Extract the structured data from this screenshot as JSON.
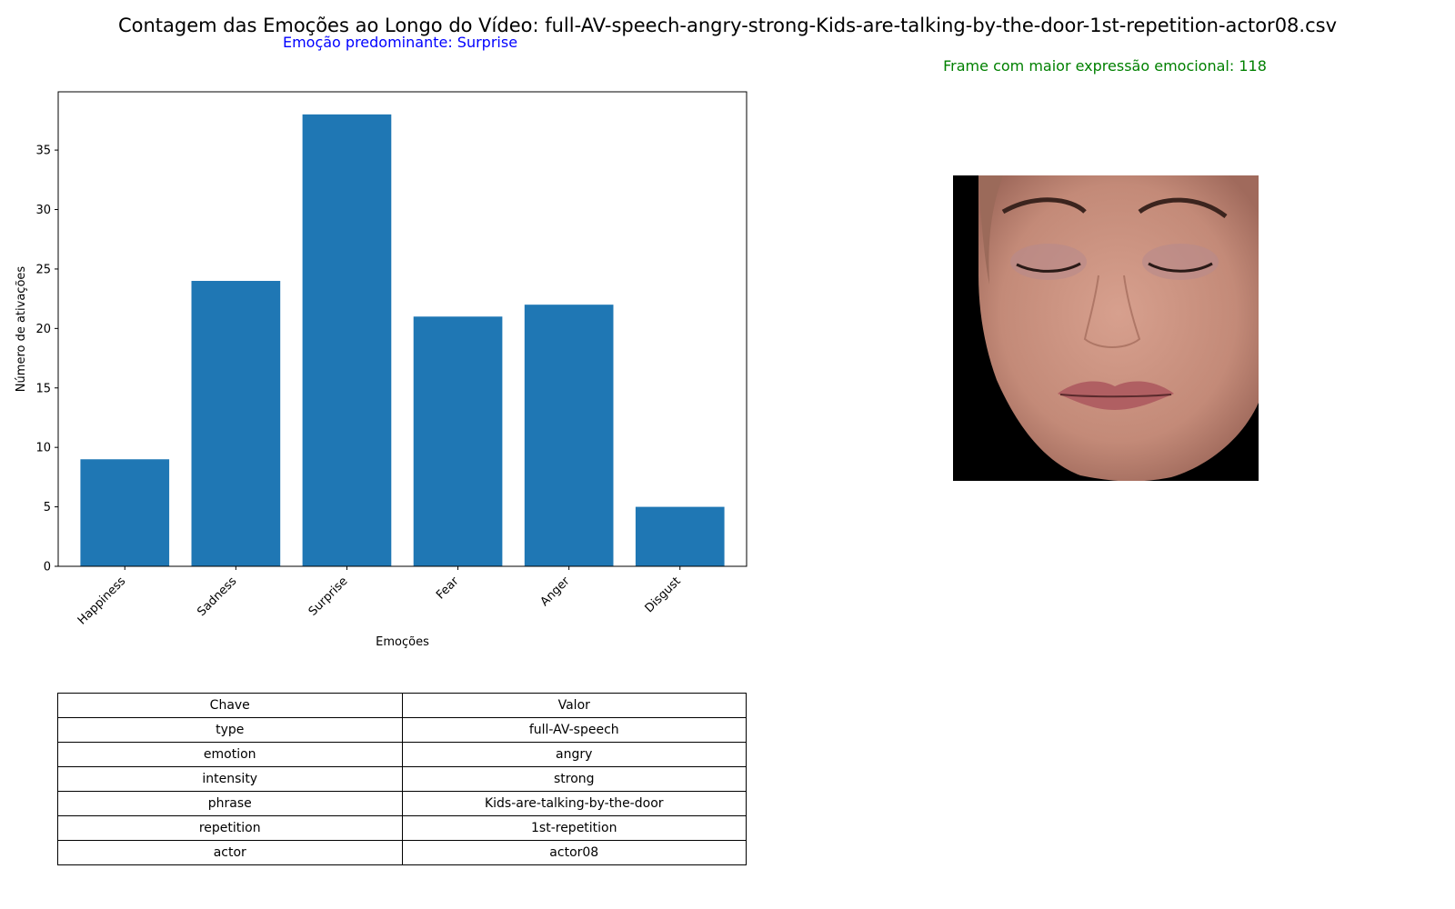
{
  "title": "Contagem das Emoções ao Longo do Vídeo: full-AV-speech-angry-strong-Kids-are-talking-by-the-door-1st-repetition-actor08.csv",
  "predominant_label": "Emoção predominante: Surprise",
  "frame_label": "Frame com maior expressão emocional: 118",
  "colors": {
    "bar": "#1f77b4",
    "predominant": "#0000ff",
    "frame": "#008000"
  },
  "chart_data": {
    "type": "bar",
    "categories": [
      "Happiness",
      "Sadness",
      "Surprise",
      "Fear",
      "Anger",
      "Disgust"
    ],
    "values": [
      9,
      24,
      38,
      21,
      22,
      5
    ],
    "xlabel": "Emoções",
    "ylabel": "Número de ativações",
    "ylim": [
      0,
      39.9
    ],
    "yticks": [
      0,
      5,
      10,
      15,
      20,
      25,
      30,
      35
    ],
    "grid": false
  },
  "table": {
    "headers": [
      "Chave",
      "Valor"
    ],
    "rows": [
      [
        "type",
        "full-AV-speech"
      ],
      [
        "emotion",
        "angry"
      ],
      [
        "intensity",
        "strong"
      ],
      [
        "phrase",
        "Kids-are-talking-by-the-door"
      ],
      [
        "repetition",
        "1st-repetition"
      ],
      [
        "actor",
        "actor08"
      ]
    ]
  },
  "image": {
    "icon": "face-frame-image"
  }
}
